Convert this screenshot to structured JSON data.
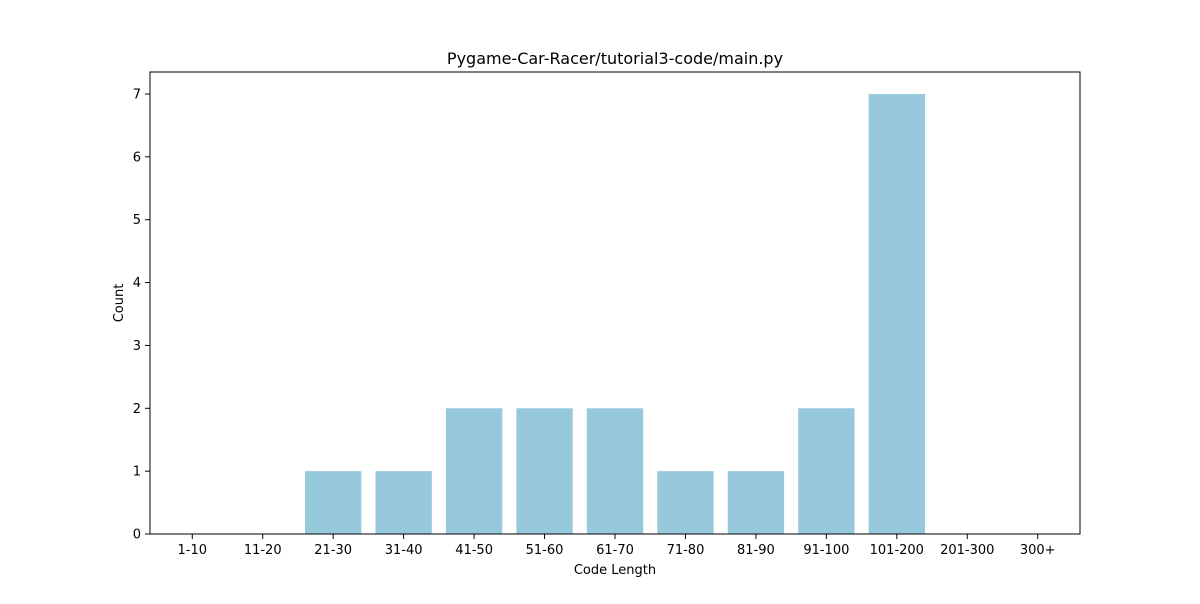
{
  "chart_data": {
    "type": "bar",
    "title": "Pygame-Car-Racer/tutorial3-code/main.py",
    "xlabel": "Code Length",
    "ylabel": "Count",
    "categories": [
      "1-10",
      "11-20",
      "21-30",
      "31-40",
      "41-50",
      "51-60",
      "61-70",
      "71-80",
      "81-90",
      "91-100",
      "101-200",
      "201-300",
      "300+"
    ],
    "values": [
      0,
      0,
      1,
      1,
      2,
      2,
      2,
      1,
      1,
      2,
      7,
      0,
      0
    ],
    "ylim": [
      0,
      7.35
    ],
    "yticks": [
      0,
      1,
      2,
      3,
      4,
      5,
      6,
      7
    ],
    "grid": false,
    "bar_color": "#96c9dc",
    "legend": null
  }
}
